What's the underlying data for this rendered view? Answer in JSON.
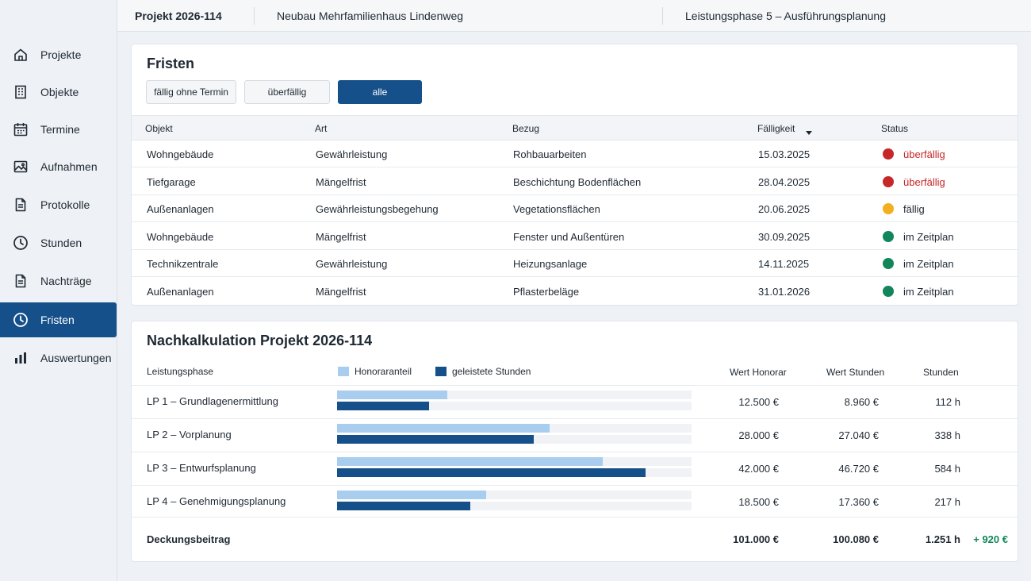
{
  "colors": {
    "accent": "#15508a",
    "status_red": "#c62828",
    "status_yellow": "#f2b01e",
    "status_green": "#12865a",
    "bar_light": "#a9cdef",
    "bar_dark": "#15508a",
    "positive": "#12865a"
  },
  "sidebar": {
    "items": [
      {
        "label": "Projekte",
        "icon": "home-icon"
      },
      {
        "label": "Objekte",
        "icon": "building-icon"
      },
      {
        "label": "Termine",
        "icon": "calendar-icon"
      },
      {
        "label": "Aufnahmen",
        "icon": "image-icon"
      },
      {
        "label": "Protokolle",
        "icon": "document-icon"
      },
      {
        "label": "Stunden",
        "icon": "clock-icon"
      },
      {
        "label": "Nachträge",
        "icon": "document-icon"
      },
      {
        "label": "Fristen",
        "icon": "clock-icon",
        "active": true
      },
      {
        "label": "Auswertungen",
        "icon": "bar-chart-icon"
      }
    ]
  },
  "topbar": {
    "project": "Projekt 2026-114",
    "name": "Neubau Mehrfamilienhaus Lindenweg",
    "phase": "Leistungsphase 5 – Ausführungsplanung"
  },
  "fristen": {
    "title": "Fristen",
    "filters": [
      {
        "label": "fällig ohne Termin",
        "active": false
      },
      {
        "label": "überfällig",
        "active": false
      },
      {
        "label": "alle",
        "active": true
      }
    ],
    "columns": {
      "objekt": "Objekt",
      "art": "Art",
      "bezug": "Bezug",
      "faelligkeit": "Fälligkeit",
      "status": "Status"
    },
    "rows": [
      {
        "objekt": "Wohngebäude",
        "art": "Gewährleistung",
        "bezug": "Rohbauarbeiten",
        "faelligkeit": "15.03.2025",
        "status": "überfällig",
        "level": "red"
      },
      {
        "objekt": "Tiefgarage",
        "art": "Mängelfrist",
        "bezug": "Beschichtung Bodenflächen",
        "faelligkeit": "28.04.2025",
        "status": "überfällig",
        "level": "red"
      },
      {
        "objekt": "Außenanlagen",
        "art": "Gewährleistungsbegehung",
        "bezug": "Vegetationsflächen",
        "faelligkeit": "20.06.2025",
        "status": "fällig",
        "level": "yellow"
      },
      {
        "objekt": "Wohngebäude",
        "art": "Mängelfrist",
        "bezug": "Fenster und Außentüren",
        "faelligkeit": "30.09.2025",
        "status": "im Zeitplan",
        "level": "green"
      },
      {
        "objekt": "Technikzentrale",
        "art": "Gewährleistung",
        "bezug": "Heizungsanlage",
        "faelligkeit": "14.11.2025",
        "status": "im Zeitplan",
        "level": "green"
      },
      {
        "objekt": "Außenanlagen",
        "art": "Mängelfrist",
        "bezug": "Pflasterbeläge",
        "faelligkeit": "31.01.2026",
        "status": "im Zeitplan",
        "level": "green"
      }
    ]
  },
  "nachkalkulation": {
    "title": "Nachkalkulation Projekt 2026-114",
    "columns": {
      "phase": "Leistungsphase",
      "wert_honorar": "Wert Honorar",
      "wert_stunden": "Wert Stunden",
      "stunden": "Stunden"
    },
    "legend": {
      "honorar": "Honoraranteil",
      "stunden": "geleistete Stunden"
    },
    "rows": [
      {
        "phase": "LP 1 – Grundlagenermittlung",
        "honorar_share": 0.31,
        "stunden_share": 0.26,
        "wert_honorar": "12.500 €",
        "wert_stunden": "8.960 €",
        "stunden": "112 h"
      },
      {
        "phase": "LP 2 – Vorplanung",
        "honorar_share": 0.6,
        "stunden_share": 0.555,
        "wert_honorar": "28.000 €",
        "wert_stunden": "27.040 €",
        "stunden": "338 h"
      },
      {
        "phase": "LP 3 – Entwurfsplanung",
        "honorar_share": 0.75,
        "stunden_share": 0.87,
        "wert_honorar": "42.000 €",
        "wert_stunden": "46.720 €",
        "stunden": "584 h"
      },
      {
        "phase": "LP 4 – Genehmigungsplanung",
        "honorar_share": 0.42,
        "stunden_share": 0.375,
        "wert_honorar": "18.500 €",
        "wert_stunden": "17.360 €",
        "stunden": "217 h"
      }
    ],
    "summary": {
      "label": "Deckungsbeitrag",
      "wert_honorar": "101.000 €",
      "wert_stunden": "100.080 €",
      "stunden": "1.251 h",
      "difference": "+ 920 €"
    }
  }
}
